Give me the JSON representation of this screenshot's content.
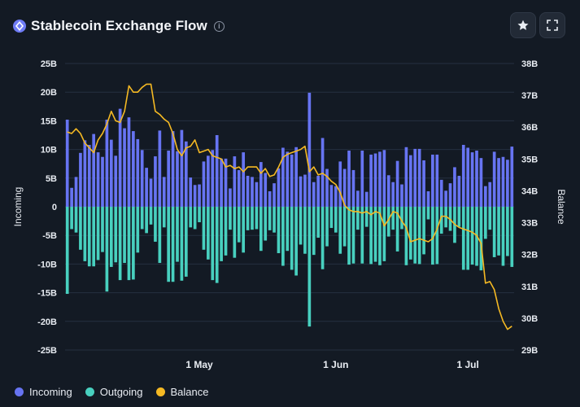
{
  "header": {
    "title": "Stablecoin Exchange Flow",
    "info_glyph": "i"
  },
  "chart_data": {
    "type": "bar+line",
    "title": "Stablecoin Exchange Flow",
    "left_axis": {
      "label": "Incoming",
      "range": [
        -25,
        25
      ],
      "ticks": [
        "25B",
        "20B",
        "15B",
        "10B",
        "5B",
        "0",
        "-5B",
        "-10B",
        "-15B",
        "-20B",
        "-25B"
      ]
    },
    "right_axis": {
      "label": "Balance",
      "range": [
        29,
        38
      ],
      "ticks": [
        "38B",
        "37B",
        "36B",
        "35B",
        "34B",
        "33B",
        "32B",
        "31B",
        "30B",
        "29B"
      ]
    },
    "x_ticks": [
      {
        "label": "1 May",
        "day": 30
      },
      {
        "label": "1 Jun",
        "day": 61
      },
      {
        "label": "1 Jul",
        "day": 91
      }
    ],
    "series": [
      {
        "name": "Incoming",
        "color": "#6774f2",
        "unit": "B",
        "values": [
          15.2,
          3.3,
          5.2,
          9.4,
          11.6,
          10.8,
          12.7,
          9.5,
          8.7,
          15.2,
          11.7,
          8.9,
          17.1,
          13.7,
          15.6,
          13.2,
          11.8,
          9.9,
          6.8,
          4.9,
          8.8,
          13.3,
          5.2,
          9.8,
          13.2,
          9.7,
          13.4,
          11.4,
          5.1,
          3.8,
          3.9,
          7.9,
          8.9,
          9.9,
          12.5,
          8.4,
          8.4,
          3.2,
          8.8,
          6.4,
          9.5,
          5.4,
          5.2,
          4.3,
          7.8,
          5.9,
          2.7,
          4.1,
          6.7,
          10.3,
          9.6,
          9.1,
          10.4,
          5.3,
          5.6,
          19.9,
          4.3,
          5.4,
          12.0,
          6.6,
          3.8,
          3.6,
          7.9,
          6.6,
          9.8,
          6.4,
          2.8,
          9.8,
          2.6,
          9.1,
          9.3,
          9.6,
          9.9,
          5.5,
          4.3,
          8.0,
          3.9,
          10.4,
          9.0,
          10.1,
          10.1,
          8.1,
          2.7,
          9.1,
          9.1,
          4.7,
          2.8,
          4.1,
          6.9,
          5.4,
          10.8,
          10.3,
          9.5,
          9.8,
          8.5,
          3.6,
          4.3,
          9.6,
          8.5,
          8.7,
          8.2,
          10.5
        ]
      },
      {
        "name": "Outgoing",
        "color": "#48d0bf",
        "unit": "B",
        "values": [
          -15.2,
          -3.9,
          -4.5,
          -7.5,
          -9.5,
          -10.4,
          -10.4,
          -9.3,
          -7.9,
          -14.8,
          -10.5,
          -9.7,
          -12.8,
          -9.8,
          -12.8,
          -12.7,
          -8.0,
          -3.9,
          -4.6,
          -3.1,
          -6.1,
          -9.8,
          -3.6,
          -13.1,
          -13.1,
          -9.6,
          -12.9,
          -12.2,
          -3.6,
          -3.9,
          -2.7,
          -7.5,
          -9.2,
          -12.8,
          -13.3,
          -9.5,
          -8.5,
          -4.0,
          -8.9,
          -6.2,
          -8.0,
          -4.1,
          -4.0,
          -3.9,
          -7.7,
          -5.9,
          -4.1,
          -4.5,
          -8.1,
          -10.3,
          -7.7,
          -11.0,
          -12.0,
          -6.6,
          -8.2,
          -20.9,
          -8.4,
          -5.4,
          -10.9,
          -6.9,
          -3.7,
          -4.5,
          -8.2,
          -6.9,
          -10.1,
          -9.9,
          -4.0,
          -9.9,
          -3.5,
          -10.0,
          -9.6,
          -10.2,
          -9.5,
          -5.2,
          -4.0,
          -7.8,
          -3.9,
          -10.2,
          -9.2,
          -9.9,
          -10.0,
          -8.3,
          -2.2,
          -10.1,
          -10.0,
          -4.7,
          -3.6,
          -4.2,
          -6.3,
          -3.5,
          -11.0,
          -11.0,
          -10.1,
          -10.3,
          -11.1,
          -5.6,
          -4.0,
          -8.8,
          -8.5,
          -10.3,
          -8.6,
          -10.5
        ]
      },
      {
        "name": "Balance",
        "color": "#f5b923",
        "unit": "B",
        "values": [
          35.85,
          35.8,
          35.95,
          35.8,
          35.5,
          35.35,
          35.2,
          35.6,
          35.8,
          36.1,
          36.5,
          36.2,
          36.15,
          36.5,
          37.3,
          37.1,
          37.1,
          37.25,
          37.35,
          37.35,
          36.5,
          36.4,
          36.25,
          36.15,
          35.8,
          35.3,
          35.1,
          35.35,
          35.4,
          35.6,
          35.2,
          35.25,
          35.3,
          35.1,
          35.05,
          35.0,
          34.75,
          34.8,
          34.7,
          34.75,
          34.6,
          34.75,
          34.75,
          34.75,
          34.55,
          34.7,
          34.45,
          34.5,
          34.75,
          35.05,
          35.15,
          35.2,
          35.25,
          35.3,
          35.4,
          34.6,
          34.75,
          34.5,
          34.55,
          34.45,
          34.3,
          34.2,
          33.95,
          33.55,
          33.4,
          33.35,
          33.35,
          33.3,
          33.35,
          33.25,
          33.35,
          33.3,
          32.9,
          33.1,
          33.35,
          33.3,
          33.05,
          32.85,
          32.4,
          32.45,
          32.5,
          32.45,
          32.4,
          32.5,
          32.8,
          33.2,
          33.2,
          33.1,
          32.95,
          32.85,
          32.8,
          32.75,
          32.7,
          32.6,
          32.35,
          31.1,
          31.15,
          30.9,
          30.3,
          29.9,
          29.65,
          29.75
        ]
      }
    ],
    "legend": {
      "position": "bottom-left",
      "entries": [
        "Incoming",
        "Outgoing",
        "Balance"
      ]
    },
    "grid": true
  }
}
